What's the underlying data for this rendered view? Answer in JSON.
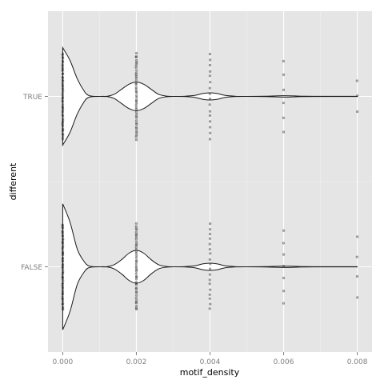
{
  "chart_data": {
    "type": "violin",
    "orientation": "horizontal",
    "xlabel": "motif_density",
    "ylabel": "different",
    "xlim": [
      -0.0004,
      0.0084
    ],
    "xticks": [
      0,
      0.002,
      0.004,
      0.006,
      0.008
    ],
    "xtick_labels": [
      "0.000",
      "0.002",
      "0.004",
      "0.006",
      "0.008"
    ],
    "categories": [
      "TRUE",
      "FALSE"
    ],
    "grid": true,
    "background": "#e5e5e5",
    "grid_color": "#ffffff",
    "series": [
      {
        "category": "TRUE",
        "density": [
          [
            0.0,
            0.68
          ],
          [
            0.0002,
            0.5
          ],
          [
            0.0004,
            0.24
          ],
          [
            0.0006,
            0.06
          ],
          [
            0.0007,
            0.015
          ],
          [
            0.0008,
            0.003
          ],
          [
            0.001,
            0.0
          ],
          [
            0.0012,
            0.002
          ],
          [
            0.0014,
            0.03
          ],
          [
            0.0016,
            0.1
          ],
          [
            0.0018,
            0.17
          ],
          [
            0.002,
            0.2
          ],
          [
            0.0022,
            0.17
          ],
          [
            0.0024,
            0.1
          ],
          [
            0.0026,
            0.03
          ],
          [
            0.0028,
            0.006
          ],
          [
            0.003,
            0.0
          ],
          [
            0.0033,
            0.002
          ],
          [
            0.0036,
            0.015
          ],
          [
            0.0038,
            0.04
          ],
          [
            0.004,
            0.05
          ],
          [
            0.0042,
            0.04
          ],
          [
            0.0044,
            0.015
          ],
          [
            0.0047,
            0.002
          ],
          [
            0.005,
            0.0
          ],
          [
            0.0055,
            0.003
          ],
          [
            0.006,
            0.01
          ],
          [
            0.0065,
            0.003
          ],
          [
            0.007,
            0.002
          ],
          [
            0.008,
            0.002
          ]
        ],
        "points": [
          {
            "x": 0.0,
            "spread": 0.5,
            "n": 50
          },
          {
            "x": 0.002,
            "spread": 0.5,
            "n": 42
          },
          {
            "x": 0.004,
            "spread": 0.5,
            "n": 16
          },
          {
            "x": 0.006,
            "spread": 0.42,
            "n": 6
          },
          {
            "x": 0.008,
            "spread": 0.18,
            "n": 3
          }
        ]
      },
      {
        "category": "FALSE",
        "density": [
          [
            0.0,
            0.88
          ],
          [
            0.0002,
            0.62
          ],
          [
            0.0004,
            0.24
          ],
          [
            0.0006,
            0.06
          ],
          [
            0.0007,
            0.015
          ],
          [
            0.0008,
            0.003
          ],
          [
            0.001,
            0.0
          ],
          [
            0.0012,
            0.002
          ],
          [
            0.0014,
            0.03
          ],
          [
            0.0016,
            0.1
          ],
          [
            0.0018,
            0.19
          ],
          [
            0.002,
            0.23
          ],
          [
            0.0022,
            0.19
          ],
          [
            0.0024,
            0.1
          ],
          [
            0.0026,
            0.03
          ],
          [
            0.0028,
            0.006
          ],
          [
            0.003,
            0.0
          ],
          [
            0.0033,
            0.002
          ],
          [
            0.0036,
            0.015
          ],
          [
            0.0038,
            0.04
          ],
          [
            0.004,
            0.05
          ],
          [
            0.0042,
            0.04
          ],
          [
            0.0044,
            0.015
          ],
          [
            0.0047,
            0.002
          ],
          [
            0.005,
            0.0
          ],
          [
            0.0055,
            0.003
          ],
          [
            0.006,
            0.01
          ],
          [
            0.0065,
            0.003
          ],
          [
            0.007,
            0.002
          ],
          [
            0.008,
            0.002
          ]
        ],
        "points": [
          {
            "x": 0.0,
            "spread": 0.5,
            "n": 55
          },
          {
            "x": 0.002,
            "spread": 0.5,
            "n": 44
          },
          {
            "x": 0.004,
            "spread": 0.5,
            "n": 18
          },
          {
            "x": 0.006,
            "spread": 0.42,
            "n": 7
          },
          {
            "x": 0.008,
            "spread": 0.36,
            "n": 4
          }
        ]
      }
    ]
  }
}
